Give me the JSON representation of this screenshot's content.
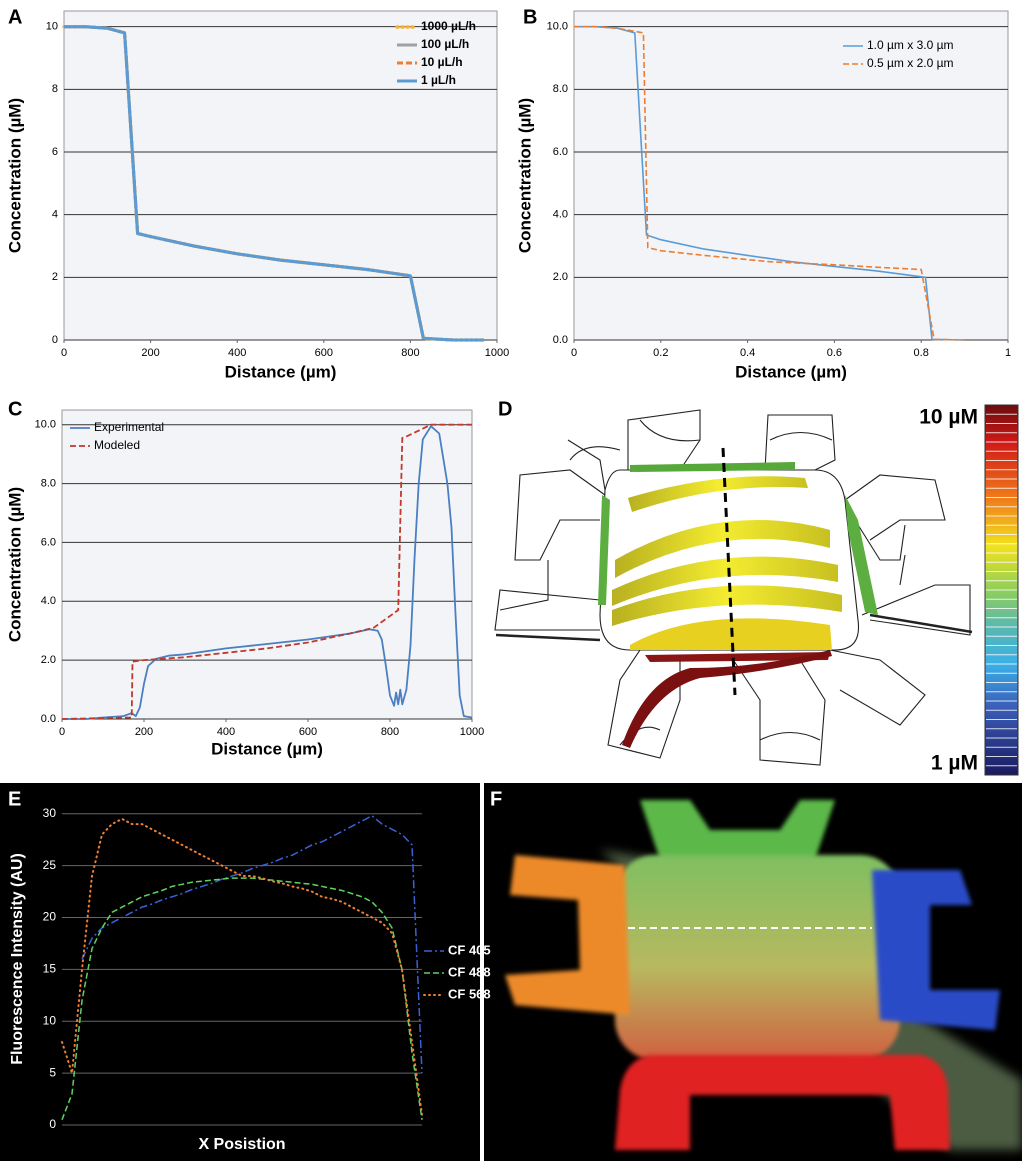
{
  "chart_data": [
    {
      "type": "line",
      "label": "A",
      "xlabel": "Distance (µm)",
      "ylabel": "Concentration (µM)",
      "xlim": [
        0,
        1000
      ],
      "ylim": [
        0,
        10.5
      ],
      "xticks": [
        0,
        200,
        400,
        600,
        800,
        1000
      ],
      "yticks": [
        0,
        2,
        4,
        6,
        8,
        10
      ],
      "grid": true,
      "legend": "upper right",
      "series": [
        {
          "name": "1000 µL/h",
          "color": "#f5b335",
          "dash": "dotted",
          "x": [
            0,
            50,
            100,
            140,
            170,
            200,
            300,
            400,
            500,
            600,
            700,
            800,
            830,
            900,
            970
          ],
          "values": [
            10,
            10,
            9.95,
            9.8,
            3.4,
            3.3,
            3.0,
            2.75,
            2.55,
            2.4,
            2.25,
            2.05,
            0.05,
            0,
            0
          ]
        },
        {
          "name": "100 µL/h",
          "color": "#a0a0a0",
          "dash": "solid",
          "x": [
            0,
            50,
            100,
            140,
            170,
            200,
            300,
            400,
            500,
            600,
            700,
            800,
            830,
            900,
            970
          ],
          "values": [
            10,
            10,
            9.95,
            9.8,
            3.4,
            3.3,
            3.0,
            2.75,
            2.55,
            2.4,
            2.25,
            2.05,
            0.05,
            0,
            0
          ]
        },
        {
          "name": "10 µL/h",
          "color": "#ed7d31",
          "dash": "dashed",
          "x": [
            0,
            50,
            100,
            140,
            170,
            200,
            300,
            400,
            500,
            600,
            700,
            800,
            830,
            900,
            970
          ],
          "values": [
            10,
            10,
            9.95,
            9.8,
            3.4,
            3.3,
            3.0,
            2.75,
            2.55,
            2.4,
            2.25,
            2.05,
            0.05,
            0,
            0
          ]
        },
        {
          "name": "1 µL/h",
          "color": "#5b9bd5",
          "dash": "solid",
          "x": [
            0,
            50,
            100,
            140,
            170,
            200,
            300,
            400,
            500,
            600,
            700,
            800,
            830,
            900,
            970
          ],
          "values": [
            10,
            10,
            9.95,
            9.8,
            3.4,
            3.3,
            3.0,
            2.75,
            2.55,
            2.4,
            2.25,
            2.05,
            0.05,
            0,
            0
          ]
        }
      ]
    },
    {
      "type": "line",
      "label": "B",
      "xlabel": "Distance (µm)",
      "ylabel": "Concentration (µM)",
      "xlim": [
        0,
        1
      ],
      "ylim": [
        0,
        10.5
      ],
      "xticks": [
        0,
        0.2,
        0.4,
        0.6,
        0.8,
        1
      ],
      "yticks": [
        {
          "value": 0,
          "label": "0.0"
        },
        {
          "value": 2,
          "label": "2.0"
        },
        {
          "value": 4,
          "label": "4.0"
        },
        {
          "value": 6,
          "label": "6.0"
        },
        {
          "value": 8,
          "label": "8.0"
        },
        {
          "value": 10,
          "label": "10.0"
        }
      ],
      "grid": true,
      "legend": "upper right",
      "series": [
        {
          "name": "1.0 µm x 3.0 µm",
          "color": "#5b9bd5",
          "dash": "solid",
          "x": [
            0,
            0.05,
            0.1,
            0.14,
            0.167,
            0.2,
            0.3,
            0.4,
            0.5,
            0.6,
            0.7,
            0.81,
            0.825,
            0.9
          ],
          "values": [
            10,
            10,
            9.95,
            9.8,
            3.35,
            3.2,
            2.9,
            2.7,
            2.5,
            2.35,
            2.2,
            2.0,
            0.02,
            0
          ]
        },
        {
          "name": "0.5 µm x 2.0 µm",
          "color": "#ed7d31",
          "dash": "dashed",
          "x": [
            0,
            0.05,
            0.1,
            0.16,
            0.17,
            0.2,
            0.3,
            0.45,
            0.6,
            0.7,
            0.8,
            0.83,
            0.9
          ],
          "values": [
            10,
            10,
            9.95,
            9.8,
            2.95,
            2.85,
            2.7,
            2.5,
            2.4,
            2.32,
            2.25,
            0.02,
            0
          ]
        }
      ]
    },
    {
      "type": "line",
      "label": "C",
      "xlabel": "Distance (µm)",
      "ylabel": "Concentration (µM)",
      "xlim": [
        0,
        1000
      ],
      "ylim": [
        0,
        10.5
      ],
      "xticks": [
        0,
        200,
        400,
        600,
        800,
        1000
      ],
      "yticks": [
        {
          "value": 0,
          "label": "0.0"
        },
        {
          "value": 2,
          "label": "2.0"
        },
        {
          "value": 4,
          "label": "4.0"
        },
        {
          "value": 6,
          "label": "6.0"
        },
        {
          "value": 8,
          "label": "8.0"
        },
        {
          "value": 10,
          "label": "10.0"
        }
      ],
      "grid": true,
      "legend": "upper left",
      "series": [
        {
          "name": "Experimental",
          "color": "#4a7fc1",
          "dash": "solid",
          "x": [
            0,
            60,
            100,
            150,
            170,
            180,
            190,
            200,
            210,
            230,
            260,
            300,
            400,
            500,
            600,
            700,
            750,
            770,
            780,
            790,
            800,
            810,
            815,
            820,
            825,
            830,
            840,
            850,
            860,
            870,
            880,
            900,
            920,
            940,
            950,
            960,
            970,
            980,
            1000
          ],
          "values": [
            0,
            0,
            0.05,
            0.1,
            0.2,
            0.1,
            0.4,
            1.2,
            1.8,
            2.05,
            2.15,
            2.2,
            2.4,
            2.55,
            2.7,
            2.9,
            3.05,
            3.0,
            2.7,
            1.8,
            0.8,
            0.45,
            0.9,
            0.5,
            1.0,
            0.5,
            1.0,
            2.5,
            5.5,
            8.0,
            9.5,
            9.95,
            9.7,
            8.0,
            6.5,
            3.5,
            0.8,
            0.1,
            0.05
          ]
        },
        {
          "name": "Modeled",
          "color": "#c0392b",
          "dash": "dashed",
          "x": [
            0,
            170,
            172,
            200,
            300,
            400,
            500,
            600,
            700,
            760,
            820,
            830,
            840,
            900,
            1000
          ],
          "values": [
            0,
            0.05,
            1.95,
            2.0,
            2.1,
            2.25,
            2.4,
            2.6,
            2.9,
            3.1,
            3.7,
            9.55,
            9.6,
            10,
            10
          ]
        }
      ]
    },
    {
      "type": "line",
      "label": "E",
      "xlabel": "X Posistion",
      "ylabel": "Fluorescence Intensity (AU)",
      "ylim": [
        0,
        32
      ],
      "yticks": [
        0,
        5,
        10,
        15,
        20,
        25,
        30
      ],
      "grid": true,
      "legend": "right",
      "series": [
        {
          "name": "CF 405",
          "color": "#3a62d8",
          "dash": "dashdot",
          "values": [
            null,
            null,
            16,
            18,
            19,
            19.5,
            20,
            20.5,
            21,
            21.3,
            21.7,
            22,
            22.3,
            22.7,
            23,
            23.3,
            23.7,
            24,
            24.3,
            24.7,
            25,
            25.3,
            25.7,
            26,
            26.5,
            27,
            27.3,
            27.8,
            28.3,
            28.8,
            29.3,
            29.8,
            29,
            28.5,
            28,
            27,
            5
          ]
        },
        {
          "name": "CF 488",
          "color": "#5fd35f",
          "dash": "dashed",
          "values": [
            0.5,
            3,
            12,
            17,
            19,
            20.5,
            21,
            21.5,
            22,
            22.3,
            22.6,
            23,
            23.2,
            23.4,
            23.5,
            23.6,
            23.7,
            23.8,
            23.8,
            23.8,
            23.7,
            23.6,
            23.5,
            23.4,
            23.3,
            23.2,
            23,
            22.8,
            22.6,
            22.3,
            22,
            21.5,
            20.5,
            19,
            15,
            7,
            0.5
          ]
        },
        {
          "name": "CF 568",
          "color": "#f08030",
          "dash": "dotted",
          "values": [
            8,
            5,
            15,
            24,
            28,
            29,
            29.5,
            29,
            29,
            28.5,
            28,
            27.5,
            27,
            26.5,
            26,
            25.5,
            25,
            24.5,
            24,
            24,
            23.8,
            23.5,
            23.3,
            23,
            22.8,
            22.5,
            22,
            21.8,
            21.5,
            21,
            20.5,
            20,
            19.5,
            18.5,
            15,
            8,
            1
          ]
        }
      ]
    }
  ],
  "panel_d": {
    "label": "D",
    "max_label": "10 µM",
    "min_label": "1 µM"
  },
  "panel_f": {
    "label": "F"
  }
}
